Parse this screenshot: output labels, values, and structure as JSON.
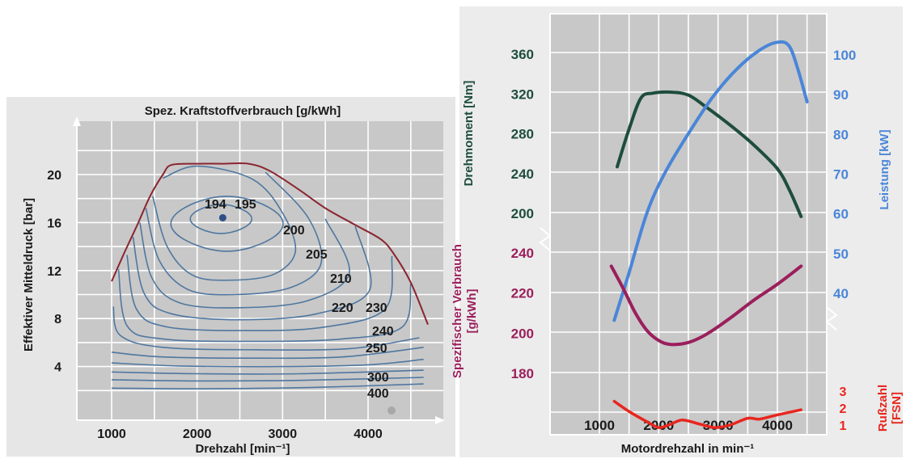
{
  "chart_data": [
    {
      "type": "contour",
      "title": "Spez. Kraftstoffverbrauch [g/kWh]",
      "xlabel": "Drehzahl [min⁻¹]",
      "ylabel": "Effektiver Mitteldruck [bar]",
      "xlim": [
        600,
        4900
      ],
      "ylim": [
        0,
        23
      ],
      "xticks": [
        "1000",
        "2000",
        "3000",
        "4000"
      ],
      "yticks": [
        "4",
        "8",
        "12",
        "16",
        "20"
      ],
      "grid": true,
      "colors": {
        "contour": "#4f77a0",
        "full_load": "#8b2530",
        "optimum": "#2e4f86"
      },
      "optimum_point": {
        "x": 2300,
        "y": 16.4
      },
      "contour_labels": [
        "194",
        "195",
        "200",
        "205",
        "210",
        "220",
        "230",
        "240",
        "250",
        "300",
        "400"
      ],
      "full_load_curve": [
        [
          1000,
          11.1
        ],
        [
          1150,
          13.5
        ],
        [
          1300,
          15.8
        ],
        [
          1450,
          18.2
        ],
        [
          1600,
          20.0
        ],
        [
          1700,
          20.8
        ],
        [
          2000,
          20.9
        ],
        [
          2300,
          20.9
        ],
        [
          2600,
          20.9
        ],
        [
          2850,
          20.3
        ],
        [
          3200,
          18.7
        ],
        [
          3500,
          17.2
        ],
        [
          3850,
          15.8
        ],
        [
          4150,
          14.6
        ],
        [
          4300,
          13.4
        ],
        [
          4500,
          11.0
        ],
        [
          4700,
          7.5
        ]
      ]
    },
    {
      "type": "line",
      "xlabel": "Motordrehzahl in min⁻¹",
      "xlim": [
        700,
        4700
      ],
      "xticks": [
        "1000",
        "2000",
        "3000",
        "4000"
      ],
      "grid": true,
      "series": [
        {
          "name": "Drehmoment [Nm]",
          "color": "#1e4d3c",
          "axis": "left-top",
          "ticks": [
            "200",
            "240",
            "280",
            "320",
            "360"
          ],
          "x": [
            1300,
            1500,
            1700,
            1900,
            2200,
            2500,
            2800,
            3200,
            3600,
            4000,
            4200,
            4400
          ],
          "y": [
            246,
            284,
            315,
            320,
            321,
            318,
            306,
            288,
            268,
            244,
            223,
            196
          ]
        },
        {
          "name": "Leistung [kW]",
          "color": "#4a86d8",
          "axis": "right-top",
          "ticks": [
            "40",
            "50",
            "60",
            "70",
            "80",
            "90",
            "100"
          ],
          "x": [
            1250,
            1500,
            1800,
            2100,
            2500,
            2900,
            3300,
            3700,
            4000,
            4200,
            4350,
            4500
          ],
          "y": [
            33,
            45,
            60,
            70,
            80,
            89,
            96,
            101,
            103,
            102,
            96,
            88
          ]
        },
        {
          "name": "Spezifischer Verbrauch [g/kWh]",
          "color": "#9b1f5c",
          "axis": "left-bottom",
          "ticks": [
            "180",
            "200",
            "220",
            "240"
          ],
          "x": [
            1200,
            1400,
            1600,
            1800,
            2000,
            2200,
            2500,
            2800,
            3200,
            3600,
            4000,
            4400
          ],
          "y": [
            233,
            222,
            210,
            201,
            196,
            194,
            195,
            199,
            207,
            216,
            224,
            233
          ]
        },
        {
          "name": "Rußzahl [FSN]",
          "color": "#e8261e",
          "axis": "right-bottom",
          "ticks": [
            "1",
            "2",
            "3"
          ],
          "x": [
            1250,
            1500,
            1800,
            2000,
            2200,
            2400,
            2700,
            2950,
            3200,
            3500,
            3700,
            4000,
            4400
          ],
          "y": [
            2.4,
            1.8,
            1.2,
            0.85,
            1.05,
            1.3,
            1.05,
            0.85,
            1.0,
            1.4,
            1.35,
            1.6,
            1.9
          ]
        }
      ]
    }
  ]
}
